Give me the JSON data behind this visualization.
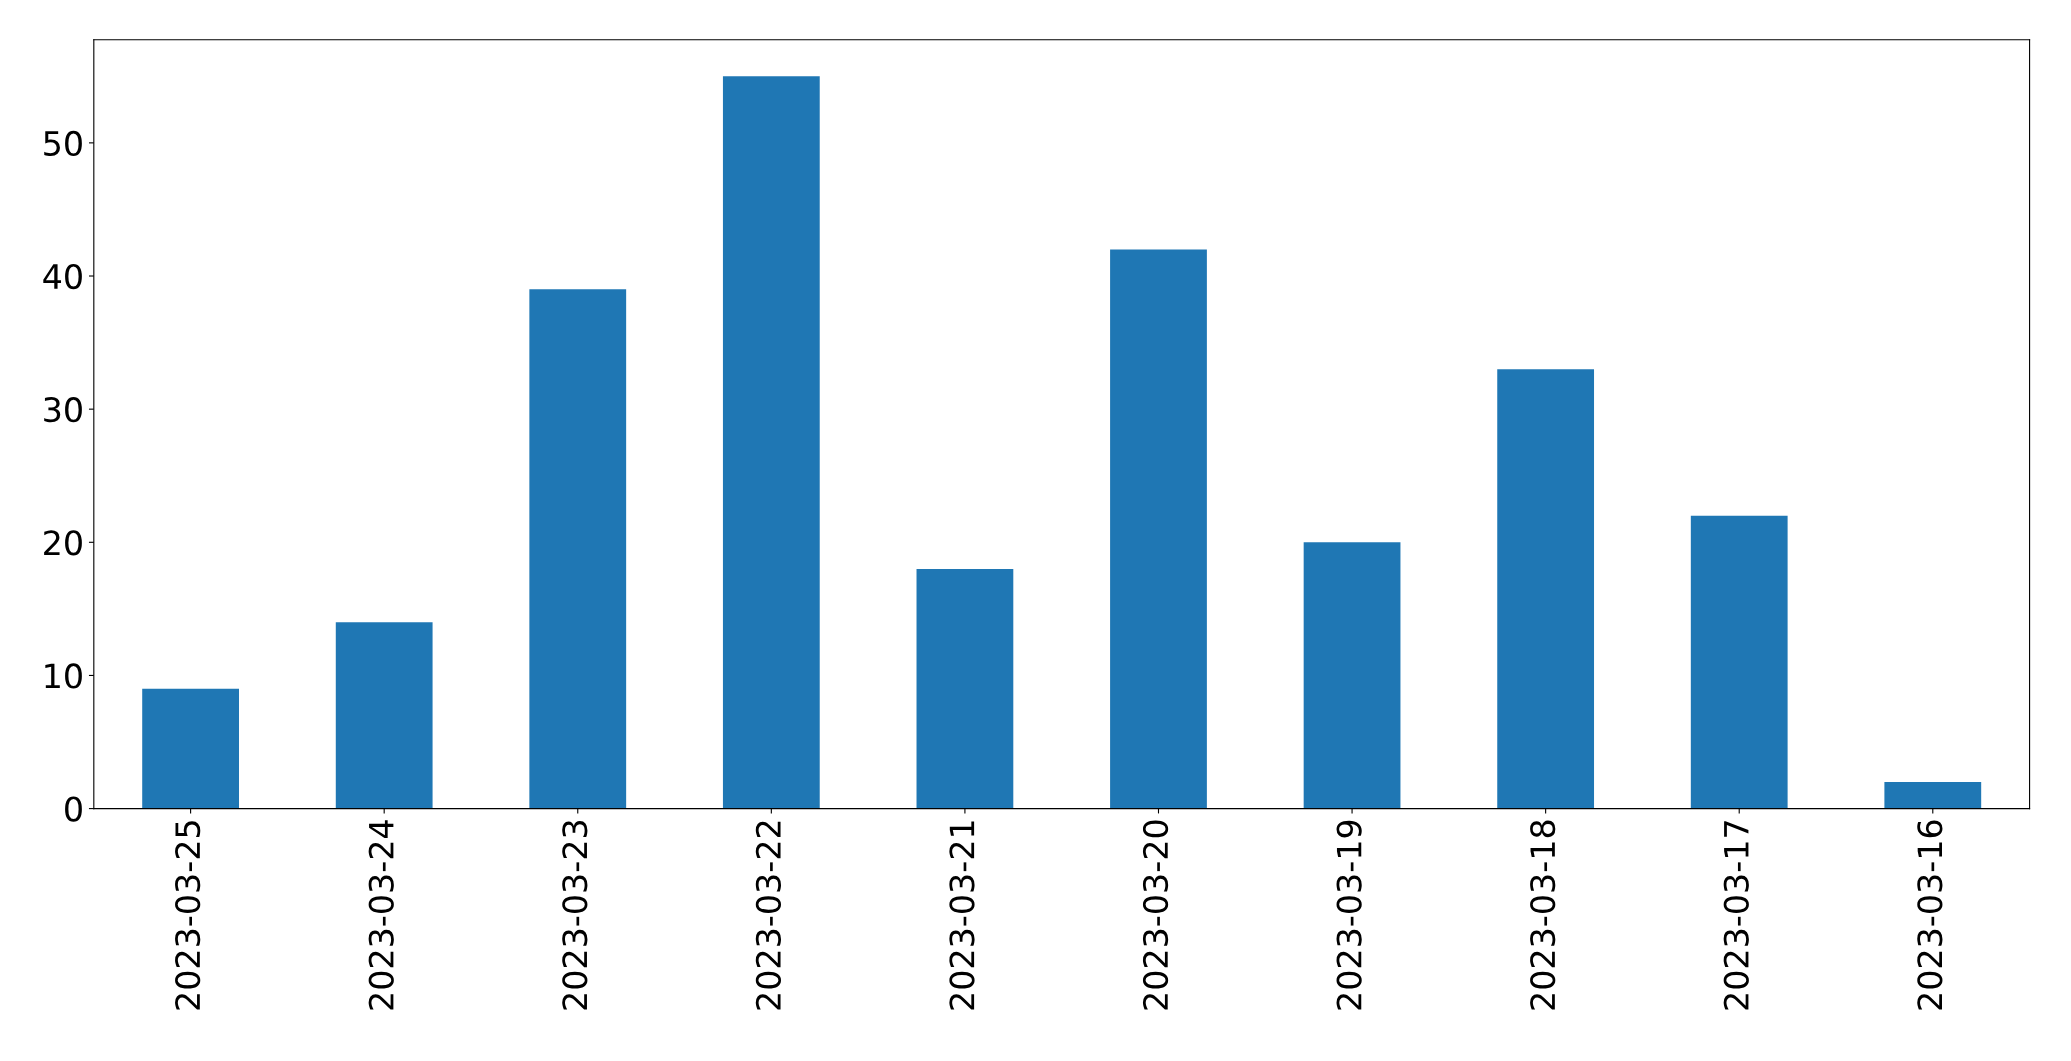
{
  "chart_data": {
    "type": "bar",
    "categories": [
      "2023-03-25",
      "2023-03-24",
      "2023-03-23",
      "2023-03-22",
      "2023-03-21",
      "2023-03-20",
      "2023-03-19",
      "2023-03-18",
      "2023-03-17",
      "2023-03-16"
    ],
    "values": [
      9,
      14,
      39,
      55,
      18,
      42,
      20,
      33,
      22,
      2
    ],
    "color": "#1f77b4",
    "ylim": [
      0,
      57.75
    ],
    "yticks": [
      0,
      10,
      20,
      30,
      40,
      50
    ],
    "grid": false
  }
}
